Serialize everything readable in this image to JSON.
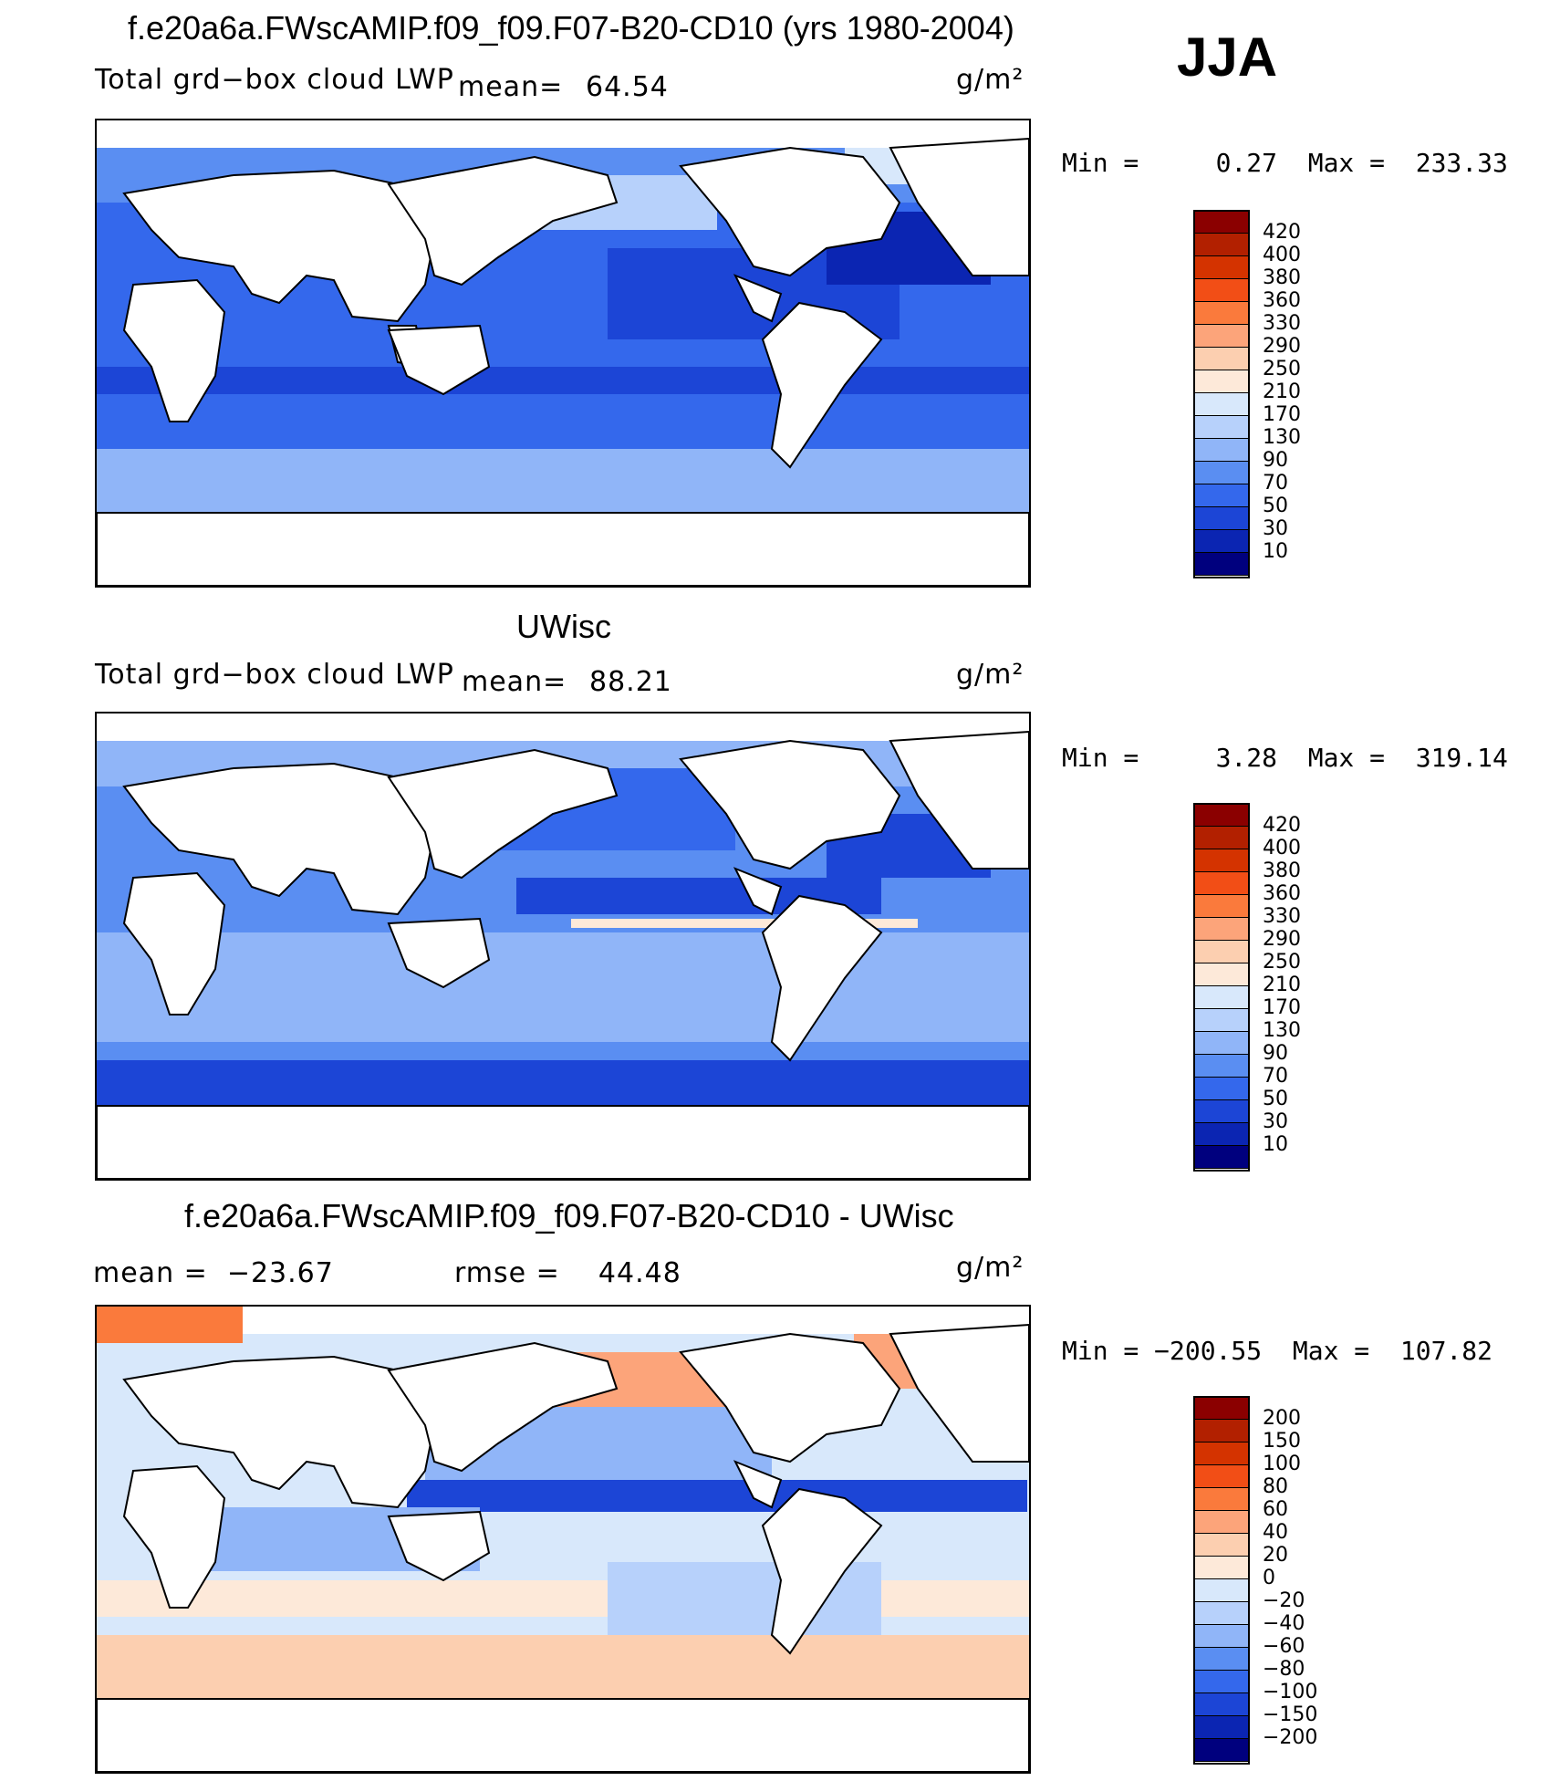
{
  "season": "JJA",
  "panels": [
    {
      "title": "f.e20a6a.FWscAMIP.f09_f09.F07-B20-CD10 (yrs 1980-2004)",
      "variable": "Total grd−box cloud LWP",
      "mean_label": "mean=",
      "mean_value": "64.54",
      "units": "g/m²",
      "stats": "Min =     0.27  Max =  233.33",
      "colorbar": {
        "levels": [
          "420",
          "400",
          "380",
          "360",
          "330",
          "290",
          "250",
          "210",
          "170",
          "130",
          "90",
          "70",
          "50",
          "30",
          "10"
        ],
        "colors": [
          "#8b0000",
          "#b22000",
          "#d43300",
          "#f24e16",
          "#fa7a3c",
          "#fca47a",
          "#fccfb0",
          "#fde9d9",
          "#d8e8fb",
          "#b7d1fb",
          "#90b5f8",
          "#5a8ef2",
          "#3468ec",
          "#1c45d6",
          "#0b25b2",
          "#00007e"
        ]
      }
    },
    {
      "title": "UWisc",
      "variable": "Total grd−box cloud LWP",
      "mean_label": "mean=",
      "mean_value": "88.21",
      "units": "g/m²",
      "stats": "Min =     3.28  Max =  319.14",
      "colorbar": {
        "levels": [
          "420",
          "400",
          "380",
          "360",
          "330",
          "290",
          "250",
          "210",
          "170",
          "130",
          "90",
          "70",
          "50",
          "30",
          "10"
        ],
        "colors": [
          "#8b0000",
          "#b22000",
          "#d43300",
          "#f24e16",
          "#fa7a3c",
          "#fca47a",
          "#fccfb0",
          "#fde9d9",
          "#d8e8fb",
          "#b7d1fb",
          "#90b5f8",
          "#5a8ef2",
          "#3468ec",
          "#1c45d6",
          "#0b25b2",
          "#00007e"
        ]
      }
    },
    {
      "title": "f.e20a6a.FWscAMIP.f09_f09.F07-B20-CD10 - UWisc",
      "mean_text": "mean =  −23.67",
      "rmse_text": "rmse =    44.48",
      "units": "g/m²",
      "stats": "Min = −200.55  Max =  107.82",
      "colorbar": {
        "levels": [
          "200",
          "150",
          "100",
          "80",
          "60",
          "40",
          "20",
          "0",
          "−20",
          "−40",
          "−60",
          "−80",
          "−100",
          "−150",
          "−200"
        ],
        "colors": [
          "#8b0000",
          "#b22000",
          "#d43300",
          "#f24e16",
          "#fa7a3c",
          "#fca47a",
          "#fccfb0",
          "#fde9d9",
          "#d8e8fb",
          "#b7d1fb",
          "#90b5f8",
          "#5a8ef2",
          "#3468ec",
          "#1c45d6",
          "#0b25b2",
          "#00007e"
        ]
      }
    }
  ]
}
